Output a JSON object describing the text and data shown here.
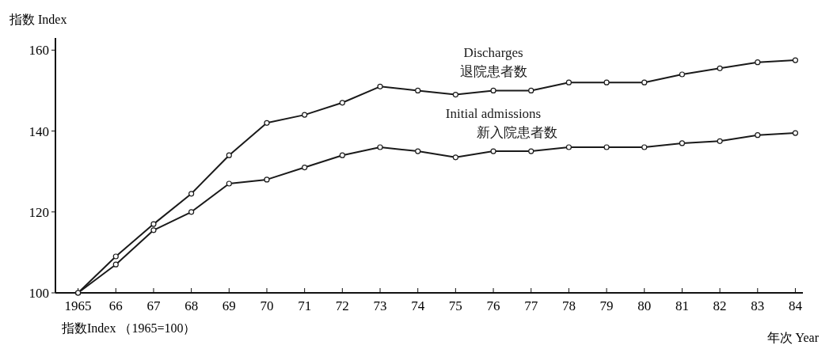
{
  "chart_data": {
    "type": "line",
    "xlabel": "年次 Year",
    "ylabel": "指数 Index",
    "annotations": [
      "指数Index （1965=100）"
    ],
    "categories": [
      "1965",
      "66",
      "67",
      "68",
      "69",
      "70",
      "71",
      "72",
      "73",
      "74",
      "75",
      "76",
      "77",
      "78",
      "79",
      "80",
      "81",
      "82",
      "83",
      "84"
    ],
    "series": [
      {
        "name": "Discharges\n退院患者数",
        "color": "#1a1a1a",
        "values": [
          100,
          109,
          117,
          124.5,
          134,
          142,
          144,
          147,
          151,
          150,
          149,
          150,
          150,
          152,
          152,
          152,
          154,
          155.5,
          157,
          157.5
        ]
      },
      {
        "name": "Initial admissions\n新入院患者数",
        "color": "#1a1a1a",
        "values": [
          100,
          107,
          115.5,
          120,
          127,
          128,
          131,
          134,
          136,
          135,
          133.5,
          135,
          135,
          136,
          136,
          136,
          137,
          137.5,
          139,
          139.5
        ]
      }
    ],
    "ylim": [
      100,
      163
    ],
    "yticks": [
      100,
      120,
      140,
      160
    ],
    "marker": "circle",
    "line_style": "solid",
    "grid": false
  }
}
